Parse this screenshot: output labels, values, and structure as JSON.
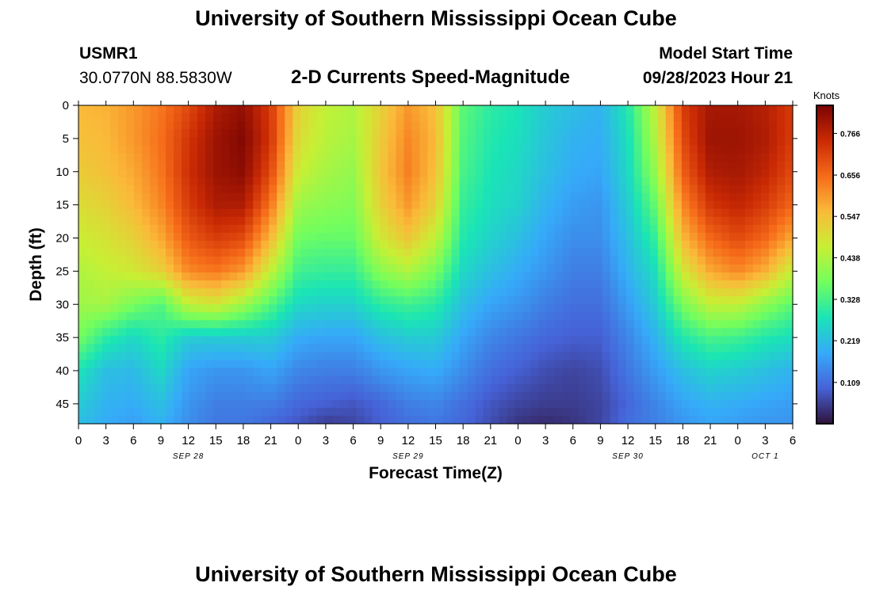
{
  "header": {
    "title": "University of Southern Mississippi Ocean Cube",
    "station_id": "USMR1",
    "coordinates": "30.0770N  88.5830W",
    "chart_title": "2-D Currents Speed-Magnitude",
    "model_start_label": "Model Start Time",
    "model_start_value": "09/28/2023 Hour 21"
  },
  "footer": {
    "title": "University of Southern Mississippi Ocean Cube"
  },
  "colors": {
    "colormap": [
      "#30123b",
      "#4662d7",
      "#36aaf9",
      "#1ae4b6",
      "#72fe5e",
      "#c8ef34",
      "#faba39",
      "#f66b19",
      "#ca2a04",
      "#7a0403"
    ]
  },
  "chart_data": {
    "type": "heatmap",
    "title": "2-D Currents Speed-Magnitude",
    "xlabel": "Forecast Time(Z)",
    "ylabel": "Depth (ft)",
    "x_range_hours": [
      0,
      78
    ],
    "y_range": [
      0,
      48
    ],
    "x_ticks": [
      {
        "h": 0,
        "label": "0"
      },
      {
        "h": 3,
        "label": "3"
      },
      {
        "h": 6,
        "label": "6"
      },
      {
        "h": 9,
        "label": "9"
      },
      {
        "h": 12,
        "label": "12"
      },
      {
        "h": 15,
        "label": "15"
      },
      {
        "h": 18,
        "label": "18"
      },
      {
        "h": 21,
        "label": "21"
      },
      {
        "h": 24,
        "label": "0"
      },
      {
        "h": 27,
        "label": "3"
      },
      {
        "h": 30,
        "label": "6"
      },
      {
        "h": 33,
        "label": "9"
      },
      {
        "h": 36,
        "label": "12"
      },
      {
        "h": 39,
        "label": "15"
      },
      {
        "h": 42,
        "label": "18"
      },
      {
        "h": 45,
        "label": "21"
      },
      {
        "h": 48,
        "label": "0"
      },
      {
        "h": 51,
        "label": "3"
      },
      {
        "h": 54,
        "label": "6"
      },
      {
        "h": 57,
        "label": "9"
      },
      {
        "h": 60,
        "label": "12"
      },
      {
        "h": 63,
        "label": "15"
      },
      {
        "h": 66,
        "label": "18"
      },
      {
        "h": 69,
        "label": "21"
      },
      {
        "h": 72,
        "label": "0"
      },
      {
        "h": 75,
        "label": "3"
      },
      {
        "h": 78,
        "label": "6"
      }
    ],
    "date_labels": [
      {
        "h": 12,
        "label": "SEP 28"
      },
      {
        "h": 36,
        "label": "SEP 29"
      },
      {
        "h": 60,
        "label": "SEP 30"
      },
      {
        "h": 75,
        "label": "OCT 1"
      }
    ],
    "y_ticks": [
      0,
      5,
      10,
      15,
      20,
      25,
      30,
      35,
      40,
      45
    ],
    "colorbar": {
      "label": "Knots",
      "min": 0.0,
      "max": 0.84,
      "ticks": [
        0.109,
        0.219,
        0.328,
        0.438,
        0.547,
        0.656,
        0.766
      ],
      "tick_labels": [
        "0.109",
        "0.219",
        "0.328",
        "0.438",
        "0.547",
        "0.656",
        "0.766"
      ]
    },
    "depths_ft": [
      0,
      5,
      10,
      15,
      20,
      25,
      30,
      35,
      40,
      45,
      48
    ],
    "hours": [
      0,
      3,
      6,
      9,
      12,
      15,
      18,
      21,
      24,
      27,
      30,
      33,
      36,
      39,
      42,
      45,
      48,
      51,
      54,
      57,
      60,
      63,
      66,
      69,
      72,
      75,
      78
    ],
    "values": [
      [
        0.56,
        0.57,
        0.6,
        0.64,
        0.7,
        0.78,
        0.81,
        0.72,
        0.52,
        0.46,
        0.44,
        0.52,
        0.6,
        0.55,
        0.35,
        0.3,
        0.28,
        0.24,
        0.22,
        0.2,
        0.29,
        0.46,
        0.72,
        0.79,
        0.79,
        0.77,
        0.72
      ],
      [
        0.55,
        0.56,
        0.6,
        0.65,
        0.73,
        0.8,
        0.83,
        0.73,
        0.5,
        0.45,
        0.43,
        0.53,
        0.62,
        0.56,
        0.34,
        0.29,
        0.27,
        0.23,
        0.2,
        0.19,
        0.27,
        0.44,
        0.7,
        0.8,
        0.8,
        0.78,
        0.72
      ],
      [
        0.53,
        0.55,
        0.58,
        0.64,
        0.74,
        0.8,
        0.82,
        0.7,
        0.47,
        0.43,
        0.41,
        0.54,
        0.63,
        0.55,
        0.33,
        0.28,
        0.26,
        0.22,
        0.19,
        0.18,
        0.26,
        0.41,
        0.67,
        0.78,
        0.79,
        0.76,
        0.7
      ],
      [
        0.5,
        0.52,
        0.56,
        0.62,
        0.72,
        0.78,
        0.78,
        0.64,
        0.42,
        0.4,
        0.39,
        0.52,
        0.6,
        0.52,
        0.31,
        0.27,
        0.25,
        0.2,
        0.17,
        0.16,
        0.24,
        0.36,
        0.62,
        0.73,
        0.76,
        0.72,
        0.66
      ],
      [
        0.47,
        0.49,
        0.52,
        0.58,
        0.68,
        0.72,
        0.7,
        0.56,
        0.37,
        0.36,
        0.36,
        0.48,
        0.54,
        0.46,
        0.29,
        0.25,
        0.22,
        0.18,
        0.15,
        0.15,
        0.22,
        0.31,
        0.56,
        0.66,
        0.7,
        0.66,
        0.58
      ],
      [
        0.44,
        0.46,
        0.48,
        0.52,
        0.62,
        0.64,
        0.6,
        0.46,
        0.32,
        0.31,
        0.31,
        0.4,
        0.44,
        0.38,
        0.26,
        0.22,
        0.19,
        0.16,
        0.13,
        0.13,
        0.2,
        0.27,
        0.48,
        0.58,
        0.62,
        0.57,
        0.46
      ],
      [
        0.42,
        0.43,
        0.38,
        0.34,
        0.46,
        0.48,
        0.42,
        0.34,
        0.26,
        0.25,
        0.25,
        0.3,
        0.32,
        0.3,
        0.22,
        0.18,
        0.16,
        0.13,
        0.11,
        0.11,
        0.17,
        0.24,
        0.38,
        0.46,
        0.46,
        0.4,
        0.35
      ],
      [
        0.38,
        0.3,
        0.26,
        0.3,
        0.24,
        0.24,
        0.24,
        0.24,
        0.19,
        0.18,
        0.18,
        0.22,
        0.24,
        0.24,
        0.18,
        0.14,
        0.12,
        0.1,
        0.09,
        0.09,
        0.14,
        0.2,
        0.29,
        0.33,
        0.32,
        0.29,
        0.27
      ],
      [
        0.28,
        0.22,
        0.21,
        0.26,
        0.18,
        0.16,
        0.16,
        0.18,
        0.14,
        0.13,
        0.13,
        0.16,
        0.18,
        0.19,
        0.15,
        0.11,
        0.09,
        0.07,
        0.06,
        0.07,
        0.12,
        0.17,
        0.22,
        0.25,
        0.24,
        0.22,
        0.2
      ],
      [
        0.24,
        0.2,
        0.19,
        0.22,
        0.16,
        0.13,
        0.13,
        0.13,
        0.1,
        0.09,
        0.08,
        0.1,
        0.13,
        0.14,
        0.11,
        0.08,
        0.06,
        0.05,
        0.05,
        0.06,
        0.1,
        0.14,
        0.18,
        0.2,
        0.19,
        0.18,
        0.17
      ],
      [
        0.22,
        0.19,
        0.17,
        0.2,
        0.15,
        0.12,
        0.12,
        0.1,
        0.08,
        0.05,
        0.06,
        0.09,
        0.11,
        0.12,
        0.1,
        0.07,
        0.04,
        0.03,
        0.04,
        0.06,
        0.11,
        0.13,
        0.16,
        0.18,
        0.17,
        0.16,
        0.16
      ]
    ]
  }
}
